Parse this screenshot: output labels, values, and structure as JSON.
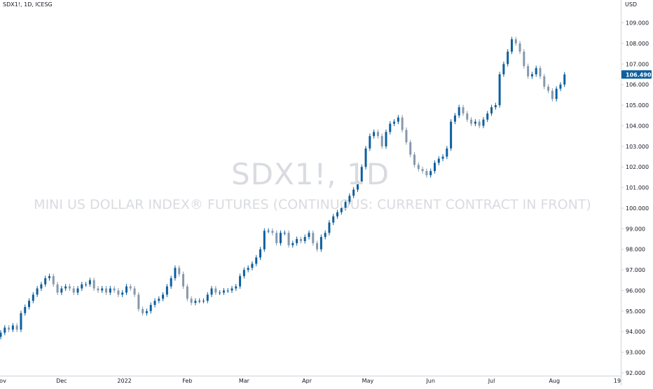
{
  "header": {
    "symbol": "SDX1!, 1D, ICESG",
    "currency": "USD"
  },
  "watermark": {
    "title": "SDX1!, 1D",
    "subtitle": "MINI US DOLLAR INDEX® FUTURES (CONTINUOUS: CURRENT CONTRACT IN FRONT)"
  },
  "colors": {
    "up": "#0d5f9e",
    "down": "#8798aa",
    "axis_line": "#cfd3da",
    "tick_text": "#131722",
    "last_price_bg": "#0d5f9e"
  },
  "chart_data": {
    "type": "candlestick",
    "title": "SDX1!, 1D",
    "ylim": [
      92,
      109.6
    ],
    "y_ticks": [
      92,
      93,
      94,
      95,
      96,
      97,
      98,
      99,
      100,
      101,
      102,
      103,
      104,
      105,
      106,
      107,
      108,
      109
    ],
    "y_tick_labels": [
      "92.000",
      "93.000",
      "94.000",
      "95.000",
      "96.000",
      "97.000",
      "98.000",
      "99.000",
      "100.000",
      "101.000",
      "102.000",
      "103.000",
      "104.000",
      "105.000",
      "106.000",
      "107.000",
      "108.000",
      "109.000"
    ],
    "x_range": [
      "2021-11-01",
      "2022-09-01"
    ],
    "x_ticks": [
      {
        "date": "2021-11-01",
        "label": "Nov"
      },
      {
        "date": "2021-12-01",
        "label": "Dec"
      },
      {
        "date": "2022-01-01",
        "label": "2022"
      },
      {
        "date": "2022-02-01",
        "label": "Feb"
      },
      {
        "date": "2022-03-01",
        "label": "Mar"
      },
      {
        "date": "2022-04-01",
        "label": "Apr"
      },
      {
        "date": "2022-05-01",
        "label": "May"
      },
      {
        "date": "2022-06-01",
        "label": "Jun"
      },
      {
        "date": "2022-07-01",
        "label": "Jul"
      },
      {
        "date": "2022-08-01",
        "label": "Aug"
      },
      {
        "date": "2022-09-01",
        "label": "19"
      }
    ],
    "last_price": 106.49,
    "last_price_label": "106.490",
    "closes": [
      [
        "2021-11-01",
        93.95
      ],
      [
        "2021-11-03",
        94.2
      ],
      [
        "2021-11-05",
        94.1
      ],
      [
        "2021-11-07",
        94.3
      ],
      [
        "2021-11-09",
        94.1
      ],
      [
        "2021-11-11",
        94.9
      ],
      [
        "2021-11-13",
        95.2
      ],
      [
        "2021-11-15",
        95.5
      ],
      [
        "2021-11-17",
        95.8
      ],
      [
        "2021-11-19",
        96.1
      ],
      [
        "2021-11-21",
        96.3
      ],
      [
        "2021-11-23",
        96.6
      ],
      [
        "2021-11-25",
        96.7
      ],
      [
        "2021-11-27",
        96.3
      ],
      [
        "2021-11-29",
        95.9
      ],
      [
        "2021-12-01",
        96.1
      ],
      [
        "2021-12-03",
        96.2
      ],
      [
        "2021-12-05",
        96.1
      ],
      [
        "2021-12-07",
        95.9
      ],
      [
        "2021-12-09",
        96.1
      ],
      [
        "2021-12-11",
        96.3
      ],
      [
        "2021-12-13",
        96.3
      ],
      [
        "2021-12-15",
        96.5
      ],
      [
        "2021-12-17",
        96.1
      ],
      [
        "2021-12-19",
        96.0
      ],
      [
        "2021-12-21",
        96.1
      ],
      [
        "2021-12-23",
        95.9
      ],
      [
        "2021-12-25",
        96.1
      ],
      [
        "2021-12-27",
        96.0
      ],
      [
        "2021-12-29",
        95.8
      ],
      [
        "2021-12-31",
        95.9
      ],
      [
        "2022-01-02",
        96.2
      ],
      [
        "2022-01-04",
        96.1
      ],
      [
        "2022-01-06",
        95.8
      ],
      [
        "2022-01-08",
        95.1
      ],
      [
        "2022-01-10",
        94.9
      ],
      [
        "2022-01-12",
        95.0
      ],
      [
        "2022-01-14",
        95.3
      ],
      [
        "2022-01-16",
        95.5
      ],
      [
        "2022-01-18",
        95.6
      ],
      [
        "2022-01-20",
        95.8
      ],
      [
        "2022-01-22",
        96.2
      ],
      [
        "2022-01-24",
        96.6
      ],
      [
        "2022-01-26",
        97.1
      ],
      [
        "2022-01-28",
        96.8
      ],
      [
        "2022-01-30",
        96.2
      ],
      [
        "2022-02-01",
        95.6
      ],
      [
        "2022-02-03",
        95.4
      ],
      [
        "2022-02-05",
        95.5
      ],
      [
        "2022-02-07",
        95.5
      ],
      [
        "2022-02-09",
        95.5
      ],
      [
        "2022-02-11",
        95.8
      ],
      [
        "2022-02-13",
        96.1
      ],
      [
        "2022-02-15",
        95.9
      ],
      [
        "2022-02-17",
        95.9
      ],
      [
        "2022-02-19",
        96.0
      ],
      [
        "2022-02-21",
        96.0
      ],
      [
        "2022-02-23",
        96.1
      ],
      [
        "2022-02-25",
        96.2
      ],
      [
        "2022-02-27",
        96.7
      ],
      [
        "2022-03-01",
        97.0
      ],
      [
        "2022-03-03",
        97.1
      ],
      [
        "2022-03-05",
        97.3
      ],
      [
        "2022-03-07",
        97.6
      ],
      [
        "2022-03-09",
        98.0
      ],
      [
        "2022-03-11",
        98.9
      ],
      [
        "2022-03-13",
        98.9
      ],
      [
        "2022-03-15",
        98.8
      ],
      [
        "2022-03-17",
        98.3
      ],
      [
        "2022-03-19",
        98.8
      ],
      [
        "2022-03-21",
        98.8
      ],
      [
        "2022-03-23",
        98.2
      ],
      [
        "2022-03-25",
        98.3
      ],
      [
        "2022-03-27",
        98.5
      ],
      [
        "2022-03-29",
        98.4
      ],
      [
        "2022-03-31",
        98.6
      ],
      [
        "2022-04-02",
        98.8
      ],
      [
        "2022-04-04",
        98.3
      ],
      [
        "2022-04-06",
        98.0
      ],
      [
        "2022-04-08",
        98.6
      ],
      [
        "2022-04-10",
        98.8
      ],
      [
        "2022-04-12",
        99.3
      ],
      [
        "2022-04-14",
        99.6
      ],
      [
        "2022-04-16",
        99.8
      ],
      [
        "2022-04-18",
        100.0
      ],
      [
        "2022-04-20",
        100.3
      ],
      [
        "2022-04-22",
        100.6
      ],
      [
        "2022-04-24",
        100.9
      ],
      [
        "2022-04-26",
        101.3
      ],
      [
        "2022-04-28",
        102.0
      ],
      [
        "2022-04-30",
        102.9
      ],
      [
        "2022-05-02",
        103.5
      ],
      [
        "2022-05-04",
        103.7
      ],
      [
        "2022-05-06",
        103.5
      ],
      [
        "2022-05-08",
        103.0
      ],
      [
        "2022-05-10",
        103.7
      ],
      [
        "2022-05-12",
        104.1
      ],
      [
        "2022-05-14",
        104.2
      ],
      [
        "2022-05-16",
        104.4
      ],
      [
        "2022-05-18",
        103.8
      ],
      [
        "2022-05-20",
        103.2
      ],
      [
        "2022-05-22",
        102.6
      ],
      [
        "2022-05-24",
        102.1
      ],
      [
        "2022-05-26",
        101.9
      ],
      [
        "2022-05-28",
        101.8
      ],
      [
        "2022-05-30",
        101.6
      ],
      [
        "2022-06-01",
        101.8
      ],
      [
        "2022-06-03",
        102.2
      ],
      [
        "2022-06-05",
        102.4
      ],
      [
        "2022-06-07",
        102.5
      ],
      [
        "2022-06-09",
        102.9
      ],
      [
        "2022-06-11",
        104.2
      ],
      [
        "2022-06-13",
        104.5
      ],
      [
        "2022-06-15",
        104.9
      ],
      [
        "2022-06-17",
        104.6
      ],
      [
        "2022-06-19",
        104.3
      ],
      [
        "2022-06-21",
        104.1
      ],
      [
        "2022-06-23",
        104.2
      ],
      [
        "2022-06-25",
        104.0
      ],
      [
        "2022-06-27",
        104.3
      ],
      [
        "2022-06-29",
        104.6
      ],
      [
        "2022-07-01",
        104.9
      ],
      [
        "2022-07-03",
        105.0
      ],
      [
        "2022-07-05",
        106.5
      ],
      [
        "2022-07-07",
        107.0
      ],
      [
        "2022-07-09",
        107.6
      ],
      [
        "2022-07-11",
        108.2
      ],
      [
        "2022-07-13",
        108.0
      ],
      [
        "2022-07-15",
        107.6
      ],
      [
        "2022-07-17",
        106.9
      ],
      [
        "2022-07-19",
        106.4
      ],
      [
        "2022-07-21",
        106.5
      ],
      [
        "2022-07-23",
        106.8
      ],
      [
        "2022-07-25",
        106.4
      ],
      [
        "2022-07-27",
        105.9
      ],
      [
        "2022-07-29",
        105.7
      ],
      [
        "2022-07-31",
        105.3
      ],
      [
        "2022-08-02",
        105.8
      ],
      [
        "2022-08-04",
        106.0
      ],
      [
        "2022-08-06",
        106.49
      ]
    ]
  }
}
